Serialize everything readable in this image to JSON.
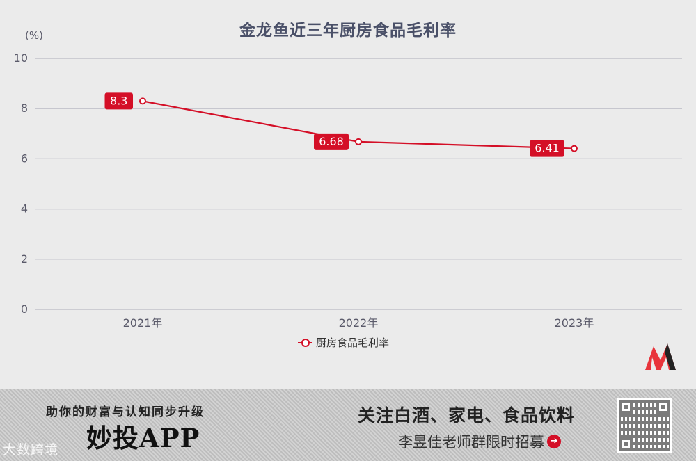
{
  "chart_data": {
    "type": "line",
    "title": "金龙鱼近三年厨房食品毛利率",
    "unit_label": "(%)",
    "categories": [
      "2021年",
      "2022年",
      "2023年"
    ],
    "series": [
      {
        "name": "厨房食品毛利率",
        "values": [
          8.3,
          6.68,
          6.41
        ],
        "labels": [
          "8.3",
          "6.68",
          "6.41"
        ]
      }
    ],
    "ylim": [
      0,
      10
    ],
    "yticks": [
      "0",
      "2",
      "4",
      "6",
      "8",
      "10"
    ],
    "grid": true,
    "legend_position": "bottom",
    "colors": {
      "series": "#d40f27",
      "grid": "#b9b9c4",
      "tick_text": "#5a5a6a"
    }
  },
  "banner": {
    "slogan": "助你的财富与认知同步升级",
    "app_name": "妙投APP",
    "follow_text": "关注白酒、家电、食品饮料",
    "recruit_text": "李昱佳老师群限时招募",
    "watermark": "大数跨境",
    "icons": [
      "brand-logo-icon",
      "arrow-right-circle-icon",
      "qr-code-icon"
    ]
  }
}
